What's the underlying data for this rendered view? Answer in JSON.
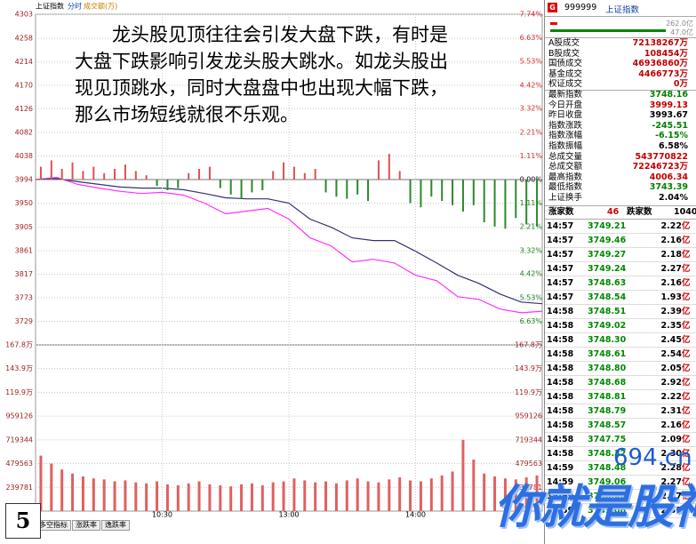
{
  "header": {
    "index": "上证指数",
    "mode": "分时",
    "metric": "成交额(万)"
  },
  "caption": "龙头股见顶往往会引发大盘下跌，有时是大盘下跌影响引发龙头股大跳水。如龙头股出现见顶跳水，同时大盘盘中也出现大幅下跌，那么市场短线就很不乐观。",
  "slide_number": "5",
  "watermark": {
    "site": "694.cn",
    "slogan": "你就是股神"
  },
  "tabs": [
    "多空指标",
    "涨跌率",
    "逸跌率"
  ],
  "chart_data": [
    {
      "type": "line",
      "xlim": [
        0,
        240
      ],
      "x": [
        0,
        10,
        20,
        30,
        40,
        50,
        60,
        70,
        80,
        90,
        100,
        110,
        120,
        130,
        140,
        150,
        160,
        170,
        180,
        190,
        200,
        210,
        220,
        230,
        240
      ],
      "ylim": [
        3685,
        4303
      ],
      "yticks": [
        4303,
        4258,
        4214,
        4170,
        4126,
        4082,
        4038,
        3994,
        3950,
        3905,
        3861,
        3817,
        3773,
        3729
      ],
      "grid": true,
      "series": [
        {
          "color": "#ff30ff",
          "values": [
            3994,
            3998,
            3985,
            3978,
            3972,
            3968,
            3970,
            3965,
            3950,
            3930,
            3935,
            3940,
            3920,
            3885,
            3870,
            3840,
            3845,
            3838,
            3815,
            3805,
            3775,
            3770,
            3752,
            3745,
            3748
          ]
        },
        {
          "color": "#33336e",
          "values": [
            3994,
            3996,
            3990,
            3985,
            3980,
            3978,
            3978,
            3975,
            3968,
            3960,
            3958,
            3958,
            3950,
            3920,
            3905,
            3885,
            3880,
            3880,
            3860,
            3838,
            3815,
            3800,
            3780,
            3765,
            3762
          ]
        }
      ]
    },
    {
      "type": "bar",
      "xlim": [
        0,
        240
      ],
      "x": [
        2.5,
        7.5,
        12.5,
        17.5,
        22.5,
        27.5,
        32.5,
        37.5,
        42.5,
        47.5,
        52.5,
        57.5,
        62.5,
        67.5,
        72.5,
        77.5,
        82.5,
        87.5,
        92.5,
        97.5,
        102.5,
        107.5,
        112.5,
        117.5,
        122.5,
        127.5,
        132.5,
        137.5,
        142.5,
        147.5,
        152.5,
        157.5,
        162.5,
        167.5,
        172.5,
        177.5,
        182.5,
        187.5,
        192.5,
        197.5,
        202.5,
        207.5,
        212.5,
        217.5,
        222.5,
        227.5,
        232.5,
        237.5
      ],
      "values": [
        0.6,
        0.9,
        0.5,
        0.8,
        0.4,
        0.6,
        0.3,
        0.5,
        0.7,
        0.4,
        0.2,
        -0.3,
        -0.5,
        -0.4,
        0.3,
        0.5,
        0.6,
        -0.4,
        -0.7,
        -0.9,
        -0.6,
        -0.5,
        0.4,
        0.8,
        0.6,
        0.3,
        0.5,
        -0.6,
        -0.8,
        -0.9,
        -0.7,
        -1.0,
        0.9,
        1.2,
        0.4,
        -1.1,
        -1.3,
        -0.8,
        -1.0,
        -1.2,
        -1.5,
        -1.2,
        -2.0,
        -2.2,
        -2.3,
        -1.8,
        -2.1,
        -2.2
      ],
      "up_color": "#e05050",
      "down_color": "#2a8a2a",
      "ylim": [
        -7.74,
        7.74
      ],
      "yticks": [
        {
          "value": 7.74,
          "label": "7.74%"
        },
        {
          "value": 6.63,
          "label": "6.63%"
        },
        {
          "value": 5.53,
          "label": "5.53%"
        },
        {
          "value": 4.42,
          "label": "4.42%"
        },
        {
          "value": 3.32,
          "label": "3.32%"
        },
        {
          "value": 2.21,
          "label": "2.21%"
        },
        {
          "value": 1.11,
          "label": "1.11%"
        },
        {
          "value": 0,
          "label": "0.00%"
        },
        {
          "value": -1.11,
          "label": "1.11%"
        },
        {
          "value": -2.21,
          "label": "2.21%"
        },
        {
          "value": -3.32,
          "label": "3.32%"
        },
        {
          "value": -4.42,
          "label": "4.42%"
        },
        {
          "value": -5.53,
          "label": "5.53%"
        },
        {
          "value": -6.63,
          "label": "6.63%"
        }
      ]
    },
    {
      "type": "bar",
      "xlim": [
        0,
        240
      ],
      "x": [
        2.5,
        7.5,
        12.5,
        17.5,
        22.5,
        27.5,
        32.5,
        37.5,
        42.5,
        47.5,
        52.5,
        57.5,
        62.5,
        67.5,
        72.5,
        77.5,
        82.5,
        87.5,
        92.5,
        97.5,
        102.5,
        107.5,
        112.5,
        117.5,
        122.5,
        127.5,
        132.5,
        137.5,
        142.5,
        147.5,
        152.5,
        157.5,
        162.5,
        167.5,
        172.5,
        177.5,
        182.5,
        187.5,
        192.5,
        197.5,
        202.5,
        207.5,
        212.5,
        217.5,
        222.5,
        227.5,
        232.5,
        237.5
      ],
      "values": [
        560000,
        480000,
        420000,
        380000,
        350000,
        330000,
        320000,
        300000,
        310000,
        290000,
        280000,
        300000,
        270000,
        260000,
        280000,
        300000,
        270000,
        260000,
        250000,
        270000,
        280000,
        260000,
        290000,
        300000,
        330000,
        310000,
        290000,
        300000,
        280000,
        310000,
        330000,
        300000,
        290000,
        320000,
        340000,
        310000,
        300000,
        330000,
        360000,
        400000,
        720000,
        520000,
        380000,
        350000,
        330000,
        320000,
        340000,
        360000
      ],
      "color": "#e06060",
      "ylim": [
        0,
        1678000
      ],
      "yticks": [
        {
          "value": 1678000,
          "label": "167.8万"
        },
        {
          "value": 1439000,
          "label": "143.9万"
        },
        {
          "value": 1199000,
          "label": "119.9万"
        },
        959126,
        719344,
        479563,
        239781
      ],
      "xticks": [
        {
          "value": 60,
          "label": "10:30"
        },
        {
          "value": 120,
          "label": "13:00"
        },
        {
          "value": 180,
          "label": "14:00"
        }
      ]
    }
  ],
  "panel": {
    "icon": "G",
    "code": "999999",
    "name": "上证指数",
    "bar_values": [
      "262.0亿",
      "47.0亿"
    ],
    "stats": [
      {
        "label": "A股成交",
        "value": "72138267万"
      },
      {
        "label": "B股成交",
        "value": "108454万"
      },
      {
        "label": "国债成交",
        "value": "46936860万"
      },
      {
        "label": "基金成交",
        "value": "4466773万"
      },
      {
        "label": "权证成交",
        "value": "0万"
      },
      {
        "label": "最新指数",
        "value": "3748.16"
      },
      {
        "label": "今日开盘",
        "value": "3999.13"
      },
      {
        "label": "昨日收盘",
        "value": "3993.67"
      },
      {
        "label": "指数涨跌",
        "value": "-245.51"
      },
      {
        "label": "指数涨幅",
        "value": "-6.15%"
      },
      {
        "label": "指数振幅",
        "value": "6.58%"
      },
      {
        "label": "总成交量",
        "value": "543770822"
      },
      {
        "label": "总成交额",
        "value": "72246723万"
      },
      {
        "label": "最高指数",
        "value": "4006.34"
      },
      {
        "label": "最低指数",
        "value": "3743.39"
      },
      {
        "label": "上证换手",
        "value": "2.04%"
      }
    ],
    "breadth": {
      "up_label": "涨家数",
      "up": "46",
      "down_label": "跌家数",
      "down": "1040"
    },
    "unit": "亿",
    "ticks": [
      [
        "14:57",
        "3749.21",
        "2.22"
      ],
      [
        "14:57",
        "3749.46",
        "2.16"
      ],
      [
        "14:57",
        "3749.27",
        "2.18"
      ],
      [
        "14:57",
        "3749.24",
        "2.27"
      ],
      [
        "14:57",
        "3748.63",
        "2.16"
      ],
      [
        "14:57",
        "3748.54",
        "1.93"
      ],
      [
        "14:58",
        "3748.51",
        "2.39"
      ],
      [
        "14:58",
        "3749.02",
        "2.35"
      ],
      [
        "14:58",
        "3748.30",
        "2.45"
      ],
      [
        "14:58",
        "3748.61",
        "2.54"
      ],
      [
        "14:58",
        "3748.80",
        "2.05"
      ],
      [
        "14:58",
        "3748.68",
        "2.92"
      ],
      [
        "14:58",
        "3748.81",
        "2.22"
      ],
      [
        "14:58",
        "3748.79",
        "2.31"
      ],
      [
        "14:58",
        "3748.57",
        "2.16"
      ],
      [
        "14:58",
        "3747.75",
        "2.09"
      ],
      [
        "14:58",
        "3748.32",
        "2.30"
      ],
      [
        "14:59",
        "3748.48",
        "2.28"
      ],
      [
        "14:59",
        "3749.06",
        "2.27"
      ],
      [
        "14:59",
        "3748.60",
        "2.47"
      ],
      [
        "14:59",
        "3749.08",
        "2.31"
      ]
    ]
  }
}
